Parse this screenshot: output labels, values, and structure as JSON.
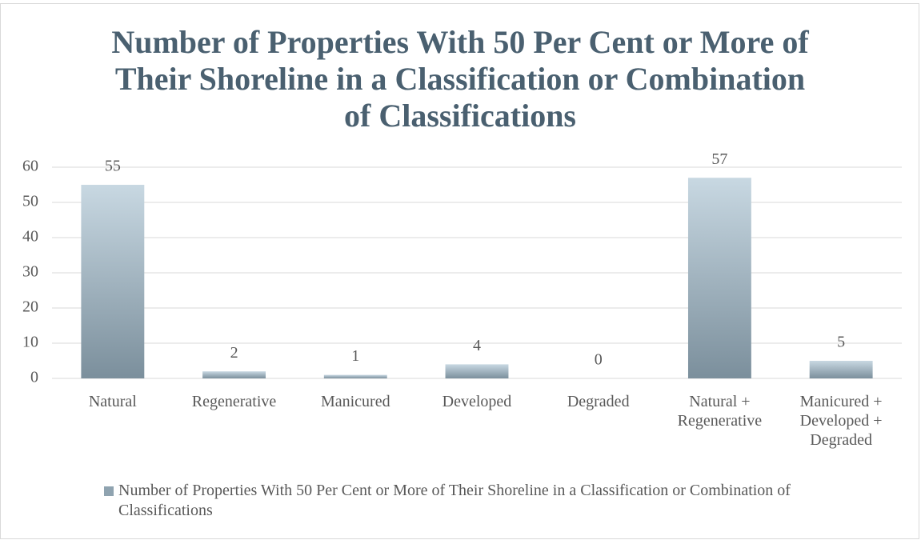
{
  "chart_data": {
    "type": "bar",
    "title": "Number of Properties With 50 Per Cent or More of Their Shoreline in a Classification or Combination of Classifications",
    "categories": [
      "Natural",
      "Regenerative",
      "Manicured",
      "Developed",
      "Degraded",
      "Natural + Regenerative",
      "Manicured + Developed + Degraded"
    ],
    "series": [
      {
        "name": "Number of Properties With 50 Per Cent or More of Their Shoreline in a Classification or Combination of Classifications",
        "color": "#8fa3b0",
        "values": [
          55,
          2,
          1,
          4,
          0,
          57,
          5
        ]
      }
    ],
    "ylim": [
      0,
      60
    ],
    "yticks": [
      0,
      10,
      20,
      30,
      40,
      50,
      60
    ],
    "grid": true,
    "legend": "bottom"
  }
}
